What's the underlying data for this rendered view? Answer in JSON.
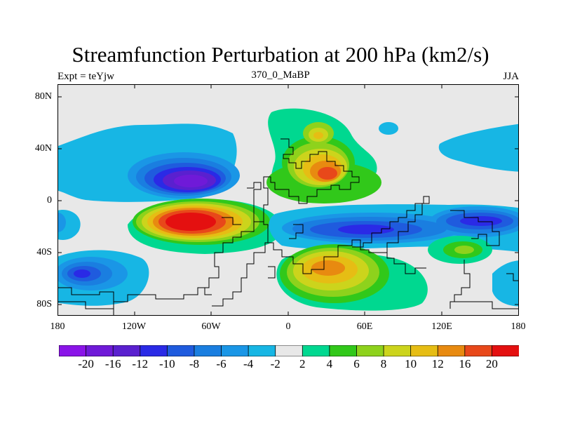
{
  "title": "Streamfunction Perturbation at 200 hPa (km2/s)",
  "subtitle_left": "Expt = teYjw",
  "subtitle_center": "370_0_MaBP",
  "subtitle_right": "JJA",
  "y_ticks": [
    "80N",
    "40N",
    "0",
    "40S",
    "80S"
  ],
  "x_ticks": [
    "180",
    "120W",
    "60W",
    "0",
    "60E",
    "120E",
    "180"
  ],
  "colorbar": {
    "labels": [
      "-20",
      "-16",
      "-12",
      "-10",
      "-8",
      "-6",
      "-4",
      "-2",
      "2",
      "4",
      "6",
      "8",
      "10",
      "12",
      "16",
      "20"
    ],
    "colors": [
      "#8a14e8",
      "#6f1ad8",
      "#5a20cf",
      "#2a2ae6",
      "#1f5bde",
      "#1a7ee0",
      "#1a96e6",
      "#17b6e4",
      "#e8e8e8",
      "#00d890",
      "#31c81a",
      "#8ed21c",
      "#ccd41c",
      "#e6bd14",
      "#e88a10",
      "#e8481a",
      "#e41010"
    ]
  },
  "map_data": {
    "type": "filled-contour",
    "variable": "streamfunction perturbation",
    "level": "200 hPa",
    "units": "km2/s",
    "x_range": [
      "180",
      "180"
    ],
    "y_range": [
      "90S",
      "90N"
    ],
    "features": [
      {
        "sign": "negative",
        "peak": "-20",
        "lon": "80W",
        "lat": "15N"
      },
      {
        "sign": "positive",
        "peak": "20",
        "lon": "65W",
        "lat": "20S"
      },
      {
        "sign": "positive",
        "peak": "16",
        "lon": "35E",
        "lat": "20N"
      },
      {
        "sign": "positive",
        "peak": "12",
        "lon": "35E",
        "lat": "52S"
      },
      {
        "sign": "negative",
        "peak": "-16",
        "lon": "150E",
        "lat": "15S"
      },
      {
        "sign": "negative",
        "peak": "-10",
        "lon": "160W",
        "lat": "57S"
      }
    ]
  }
}
